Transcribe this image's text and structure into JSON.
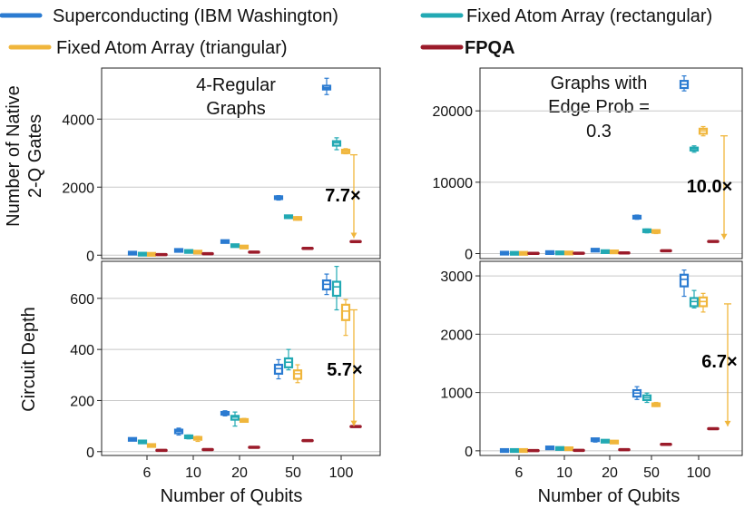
{
  "legend": [
    {
      "label": "Superconducting (IBM Washington)",
      "color": "#2b7bd1",
      "bold": false
    },
    {
      "label": "Fixed Atom Array (rectangular)",
      "color": "#22a9b3",
      "bold": false
    },
    {
      "label": "Fixed Atom Array (triangular)",
      "color": "#f0b63c",
      "bold": false
    },
    {
      "label": "FPQA",
      "color": "#9b1b2a",
      "bold": true
    }
  ],
  "labels": {
    "ylabel_top_line1": "Number of Native",
    "ylabel_top_line2": "2-Q Gates",
    "ylabel_bottom": "Circuit Depth",
    "xlabel_left": "Number of Qubits",
    "xlabel_right": "Number of Qubits",
    "left_title_line1": "4-Regular",
    "left_title_line2": "Graphs",
    "right_title_line1": "Graphs with",
    "right_title_line2": "Edge Prob =",
    "right_title_line3": "0.3"
  },
  "chart_data": [
    {
      "id": "p1",
      "type": "box",
      "title": "4-Regular Graphs",
      "ylabel": "Number of Native 2-Q Gates",
      "categories": [
        "6",
        "10",
        "20",
        "50",
        "100"
      ],
      "ylim": [
        -100,
        5500
      ],
      "yticks": [
        0,
        2000,
        4000
      ],
      "ratio_label": "7.7×",
      "series": [
        {
          "name": "Superconducting (IBM Washington)",
          "boxes": [
            [
              50,
              55,
              60,
              65,
              70
            ],
            [
              120,
              130,
              140,
              150,
              160
            ],
            [
              370,
              380,
              400,
              410,
              420
            ],
            [
              1620,
              1650,
              1690,
              1720,
              1750
            ],
            [
              4720,
              4870,
              4920,
              4980,
              5200
            ]
          ]
        },
        {
          "name": "Fixed Atom Array (rectangular)",
          "boxes": [
            [
              25,
              28,
              30,
              32,
              35
            ],
            [
              95,
              100,
              110,
              115,
              120
            ],
            [
              265,
              270,
              280,
              290,
              300
            ],
            [
              1080,
              1100,
              1130,
              1150,
              1170
            ],
            [
              3100,
              3220,
              3300,
              3350,
              3450
            ]
          ]
        },
        {
          "name": "Fixed Atom Array (triangular)",
          "boxes": [
            [
              20,
              22,
              25,
              27,
              30
            ],
            [
              80,
              85,
              90,
              95,
              100
            ],
            [
              220,
              230,
              240,
              250,
              260
            ],
            [
              1030,
              1050,
              1080,
              1110,
              1130
            ],
            [
              2980,
              3000,
              3050,
              3100,
              3130
            ]
          ]
        },
        {
          "name": "FPQA",
          "boxes": [
            [
              18,
              18,
              18,
              18,
              18
            ],
            [
              45,
              45,
              45,
              45,
              45
            ],
            [
              90,
              90,
              90,
              90,
              90
            ],
            [
              200,
              200,
              200,
              200,
              200
            ],
            [
              400,
              400,
              400,
              400,
              400
            ]
          ]
        }
      ],
      "arrow": {
        "from": 2950,
        "to": 500
      }
    },
    {
      "id": "p2",
      "type": "box",
      "title": "Graphs with Edge Prob = 0.3",
      "ylabel": "Number of Native 2-Q Gates",
      "categories": [
        "6",
        "10",
        "20",
        "50",
        "100"
      ],
      "ylim": [
        -700,
        26000
      ],
      "yticks": [
        0,
        10000,
        20000
      ],
      "ratio_label": "10.0×",
      "series": [
        {
          "name": "Superconducting (IBM Washington)",
          "boxes": [
            [
              60,
              60,
              60,
              60,
              60
            ],
            [
              120,
              130,
              140,
              150,
              160
            ],
            [
              420,
              450,
              480,
              500,
              520
            ],
            [
              4800,
              4950,
              5100,
              5250,
              5400
            ],
            [
              22800,
              23200,
              23700,
              24200,
              24900
            ]
          ]
        },
        {
          "name": "Fixed Atom Array (rectangular)",
          "boxes": [
            [
              40,
              40,
              40,
              40,
              40
            ],
            [
              90,
              95,
              100,
              105,
              110
            ],
            [
              250,
              260,
              270,
              280,
              290
            ],
            [
              2900,
              3050,
              3200,
              3300,
              3450
            ],
            [
              14200,
              14450,
              14700,
              14850,
              15100
            ]
          ]
        },
        {
          "name": "Fixed Atom Array (triangular)",
          "boxes": [
            [
              35,
              35,
              35,
              35,
              35
            ],
            [
              75,
              80,
              85,
              90,
              95
            ],
            [
              220,
              230,
              240,
              250,
              260
            ],
            [
              2800,
              2950,
              3100,
              3200,
              3350
            ],
            [
              16500,
              16800,
              17200,
              17500,
              17800
            ]
          ]
        },
        {
          "name": "FPQA",
          "boxes": [
            [
              25,
              25,
              25,
              25,
              25
            ],
            [
              40,
              40,
              40,
              40,
              40
            ],
            [
              100,
              100,
              100,
              100,
              100
            ],
            [
              400,
              400,
              400,
              400,
              400
            ],
            [
              1700,
              1700,
              1700,
              1700,
              1700
            ]
          ]
        }
      ],
      "arrow": {
        "from": 16500,
        "to": 2000
      }
    },
    {
      "id": "p3",
      "type": "box",
      "ylabel": "Circuit Depth",
      "xlabel": "Number of Qubits",
      "categories": [
        "6",
        "10",
        "20",
        "50",
        "100"
      ],
      "ylim": [
        -15,
        745
      ],
      "yticks": [
        0,
        200,
        400,
        600
      ],
      "ratio_label": "5.7×",
      "series": [
        {
          "name": "Superconducting (IBM Washington)",
          "boxes": [
            [
              44,
              46,
              48,
              50,
              52
            ],
            [
              65,
              72,
              80,
              86,
              92
            ],
            [
              140,
              145,
              150,
              155,
              160
            ],
            [
              285,
              305,
              325,
              340,
              360
            ],
            [
              615,
              635,
              655,
              670,
              695
            ]
          ]
        },
        {
          "name": "Fixed Atom Array (rectangular)",
          "boxes": [
            [
              33,
              35,
              38,
              40,
              42
            ],
            [
              50,
              52,
              58,
              62,
              65
            ],
            [
              100,
              125,
              135,
              140,
              155
            ],
            [
              320,
              330,
              350,
              365,
              400
            ],
            [
              555,
              610,
              645,
              665,
              725
            ]
          ]
        },
        {
          "name": "Fixed Atom Array (triangular)",
          "boxes": [
            [
              20,
              22,
              24,
              26,
              28
            ],
            [
              40,
              48,
              52,
              56,
              60
            ],
            [
              115,
              118,
              122,
              126,
              130
            ],
            [
              270,
              285,
              305,
              318,
              340
            ],
            [
              455,
              515,
              550,
              575,
              595
            ]
          ]
        },
        {
          "name": "FPQA",
          "boxes": [
            [
              5,
              5,
              5,
              5,
              5
            ],
            [
              8,
              8,
              8,
              8,
              8
            ],
            [
              17,
              17,
              17,
              17,
              17
            ],
            [
              43,
              43,
              43,
              43,
              43
            ],
            [
              98,
              98,
              98,
              98,
              98
            ]
          ]
        }
      ],
      "arrow": {
        "from": 555,
        "to": 100
      }
    },
    {
      "id": "p4",
      "type": "box",
      "ylabel": "",
      "xlabel": "Number of Qubits",
      "categories": [
        "6",
        "10",
        "20",
        "50",
        "100"
      ],
      "ylim": [
        -80,
        3250
      ],
      "yticks": [
        0,
        1000,
        2000,
        3000
      ],
      "ratio_label": "6.7×",
      "series": [
        {
          "name": "Superconducting (IBM Washington)",
          "boxes": [
            [
              5,
              5,
              5,
              5,
              5
            ],
            [
              40,
              45,
              50,
              55,
              60
            ],
            [
              150,
              170,
              190,
              200,
              210
            ],
            [
              880,
              930,
              990,
              1040,
              1100
            ],
            [
              2650,
              2820,
              2940,
              3020,
              3100
            ]
          ]
        },
        {
          "name": "Fixed Atom Array (rectangular)",
          "boxes": [
            [
              5,
              5,
              5,
              5,
              5
            ],
            [
              30,
              35,
              40,
              45,
              50
            ],
            [
              140,
              150,
              165,
              175,
              185
            ],
            [
              830,
              870,
              910,
              950,
              990
            ],
            [
              2450,
              2480,
              2560,
              2620,
              2750
            ]
          ]
        },
        {
          "name": "Fixed Atom Array (triangular)",
          "boxes": [
            [
              5,
              5,
              5,
              5,
              5
            ],
            [
              25,
              30,
              35,
              40,
              45
            ],
            [
              130,
              140,
              150,
              160,
              170
            ],
            [
              760,
              770,
              790,
              810,
              830
            ],
            [
              2380,
              2480,
              2560,
              2630,
              2700
            ]
          ]
        },
        {
          "name": "FPQA",
          "boxes": [
            [
              3,
              3,
              3,
              3,
              3
            ],
            [
              8,
              8,
              8,
              8,
              8
            ],
            [
              20,
              20,
              20,
              20,
              20
            ],
            [
              110,
              110,
              110,
              110,
              110
            ],
            [
              380,
              380,
              380,
              380,
              380
            ]
          ]
        }
      ],
      "arrow": {
        "from": 2520,
        "to": 420
      }
    }
  ]
}
